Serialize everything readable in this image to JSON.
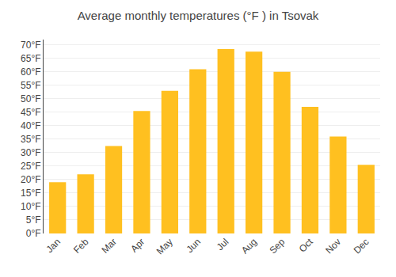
{
  "chart_data": {
    "type": "bar",
    "title": "Average monthly temperatures (°F ) in Tsovak",
    "categories": [
      "Jan",
      "Feb",
      "Mar",
      "Apr",
      "May",
      "Jun",
      "Jul",
      "Aug",
      "Sep",
      "Oct",
      "Nov",
      "Dec"
    ],
    "values": [
      19,
      22,
      32.5,
      45.5,
      53,
      61,
      68.5,
      67.5,
      60,
      47,
      36,
      25.5
    ],
    "color": "#FFC020",
    "ylim": [
      0,
      72
    ],
    "yticks": [
      {
        "value": 0,
        "label": "0°F"
      },
      {
        "value": 5,
        "label": "5°F"
      },
      {
        "value": 10,
        "label": "10°F"
      },
      {
        "value": 15,
        "label": "15°F"
      },
      {
        "value": 20,
        "label": "20°F"
      },
      {
        "value": 25,
        "label": "25°F"
      },
      {
        "value": 30,
        "label": "30°F"
      },
      {
        "value": 35,
        "label": "35°F"
      },
      {
        "value": 40,
        "label": "40°F"
      },
      {
        "value": 45,
        "label": "45°F"
      },
      {
        "value": 50,
        "label": "50°F"
      },
      {
        "value": 55,
        "label": "55°F"
      },
      {
        "value": 60,
        "label": "60°F"
      },
      {
        "value": 65,
        "label": "65°F"
      },
      {
        "value": 70,
        "label": "70°F"
      }
    ],
    "grid": true
  }
}
